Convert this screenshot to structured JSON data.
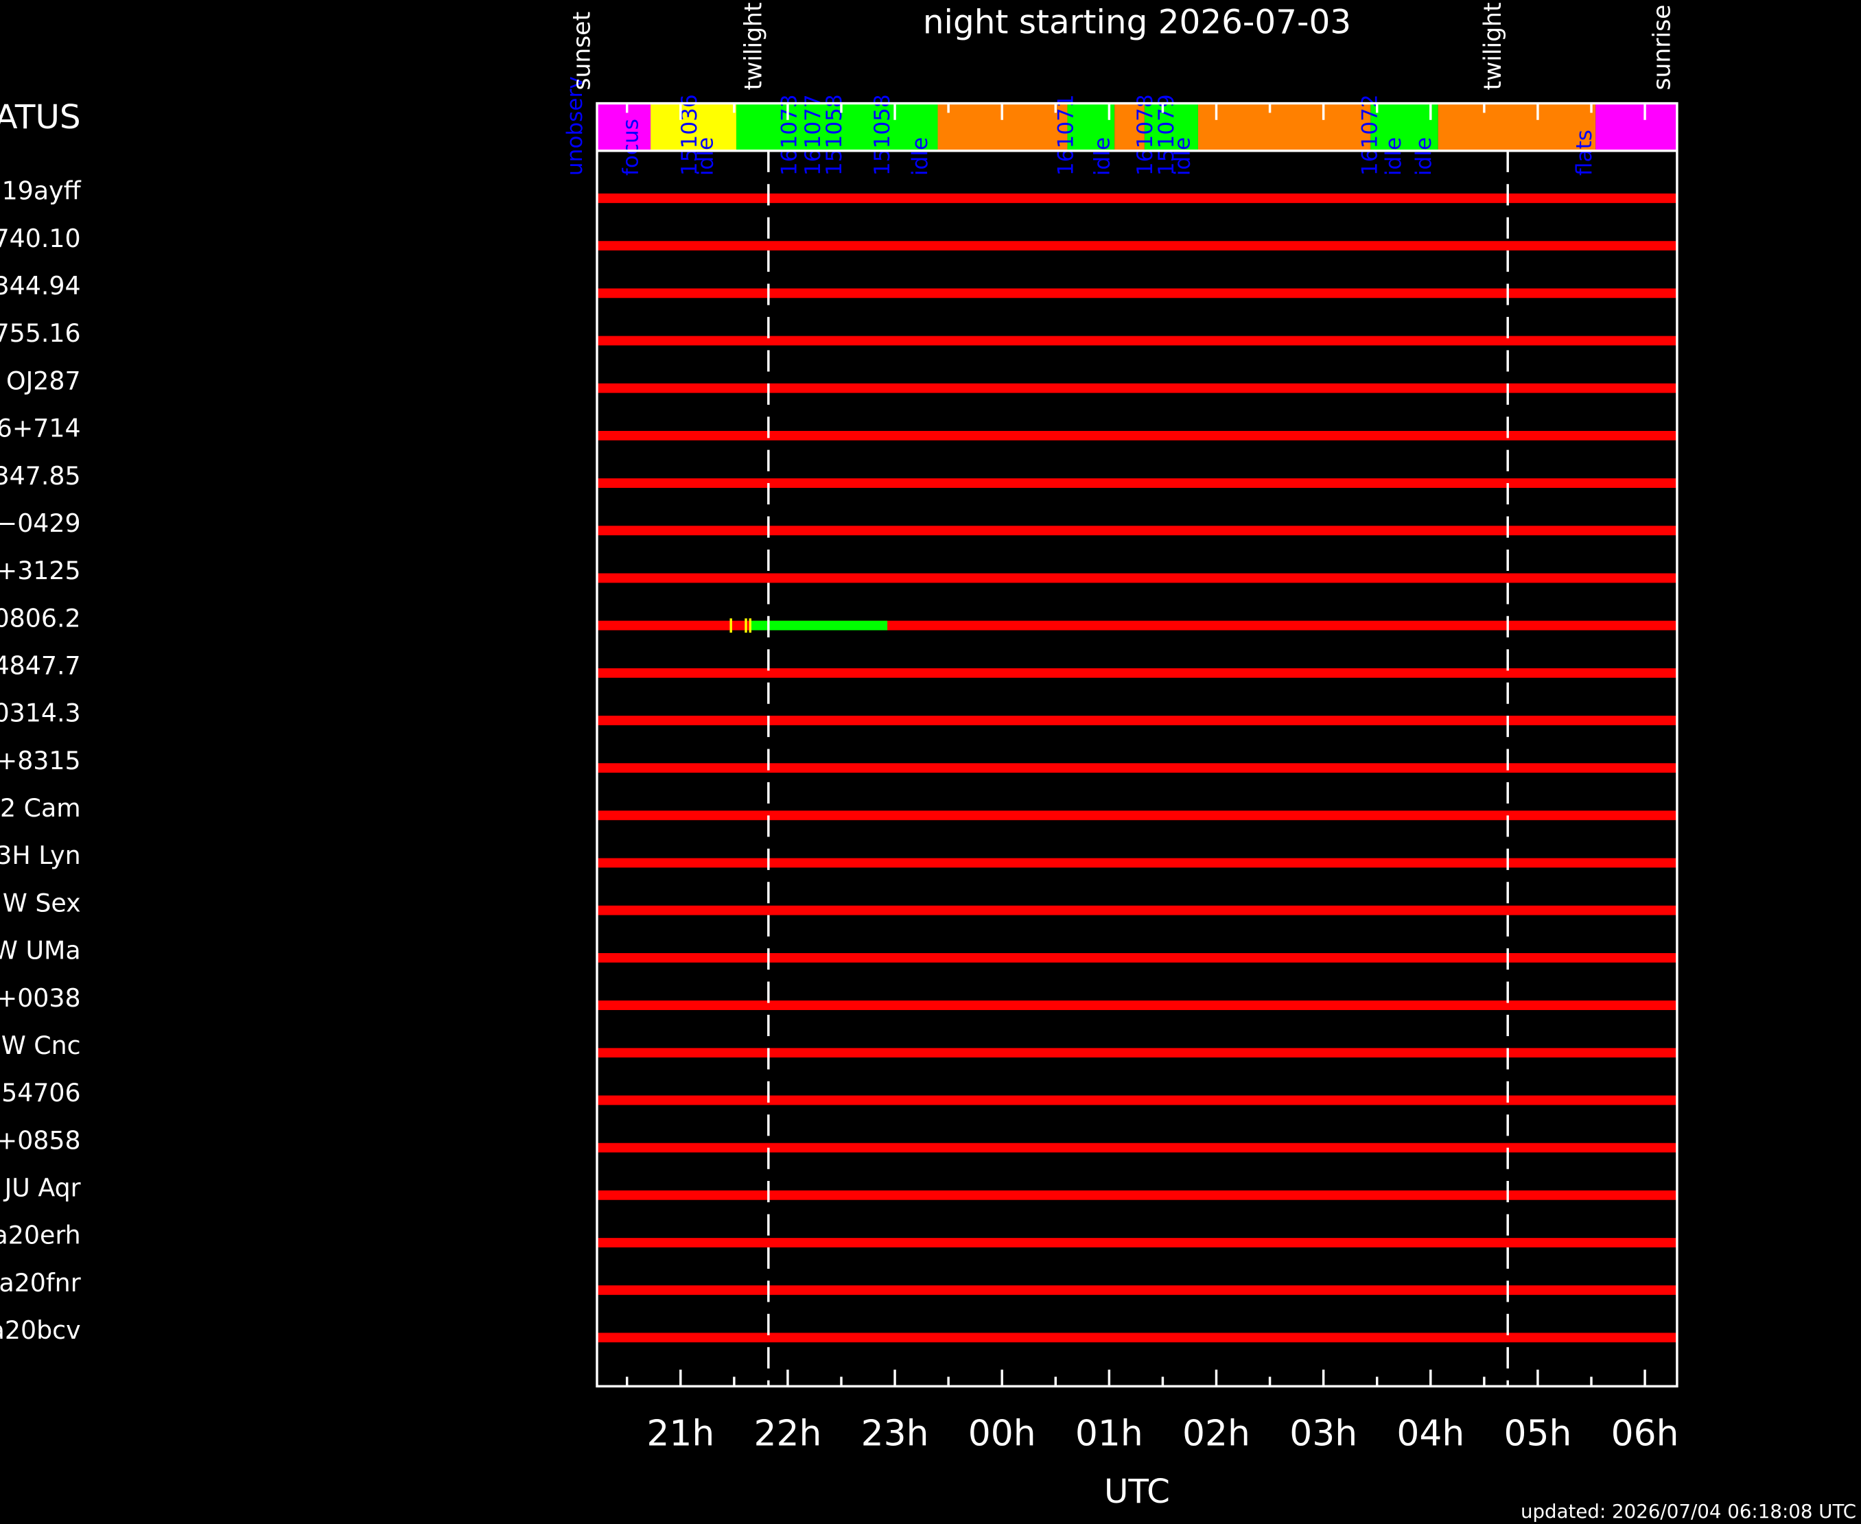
{
  "chart_data": {
    "type": "timeline",
    "title": "night starting 2026-07-03",
    "xlabel": "UTC",
    "header": "ATUS",
    "footer": "updated: 2026/07/04 06:18:08 UTC",
    "xlim": [
      20.22,
      30.3
    ],
    "xticks": [
      {
        "value": 21,
        "label": "21h"
      },
      {
        "value": 22,
        "label": "22h"
      },
      {
        "value": 23,
        "label": "23h"
      },
      {
        "value": 24,
        "label": "00h"
      },
      {
        "value": 25,
        "label": "01h"
      },
      {
        "value": 26,
        "label": "02h"
      },
      {
        "value": 27,
        "label": "03h"
      },
      {
        "value": 28,
        "label": "04h"
      },
      {
        "value": 29,
        "label": "05h"
      },
      {
        "value": 30,
        "label": "06h"
      }
    ],
    "xminor": [
      20.5,
      21.5,
      22.5,
      23.5,
      24.5,
      25.5,
      26.5,
      27.5,
      28.5,
      29.5
    ],
    "events": [
      {
        "name": "sunset",
        "x": 20.22,
        "dashed": false
      },
      {
        "name": "twilight",
        "x": 21.82,
        "dashed": true
      },
      {
        "name": "twilight",
        "x": 28.72,
        "dashed": true
      },
      {
        "name": "sunrise",
        "x": 30.3,
        "dashed": false
      }
    ],
    "status_blocks": [
      {
        "start": 20.22,
        "end": 20.72,
        "color": "#ff00ff"
      },
      {
        "start": 20.72,
        "end": 21.52,
        "color": "#ffff00"
      },
      {
        "start": 21.52,
        "end": 23.4,
        "color": "#00ff00"
      },
      {
        "start": 23.4,
        "end": 24.61,
        "color": "#ff8000"
      },
      {
        "start": 24.61,
        "end": 25.05,
        "color": "#00ff00"
      },
      {
        "start": 25.05,
        "end": 25.33,
        "color": "#ff8000"
      },
      {
        "start": 25.33,
        "end": 25.83,
        "color": "#00ff00"
      },
      {
        "start": 25.83,
        "end": 27.44,
        "color": "#ff8000"
      },
      {
        "start": 27.44,
        "end": 28.07,
        "color": "#00ff00"
      },
      {
        "start": 28.07,
        "end": 29.54,
        "color": "#ff8000"
      },
      {
        "start": 29.54,
        "end": 30.3,
        "color": "#ff00ff"
      }
    ],
    "status_labels": [
      {
        "text": "unobserv",
        "x": 20.08
      },
      {
        "text": "focus",
        "x": 20.6
      },
      {
        "text": "idle",
        "x": 21.3
      },
      {
        "text": "151036",
        "x": 21.15
      },
      {
        "text": "161073",
        "x": 22.08
      },
      {
        "text": "161077",
        "x": 22.3
      },
      {
        "text": "151058",
        "x": 22.5
      },
      {
        "text": "151058",
        "x": 22.95
      },
      {
        "text": "idle",
        "x": 23.3
      },
      {
        "text": "161071",
        "x": 24.66
      },
      {
        "text": "idle",
        "x": 25.0
      },
      {
        "text": "161078",
        "x": 25.4
      },
      {
        "text": "151079",
        "x": 25.6
      },
      {
        "text": "idle",
        "x": 25.75
      },
      {
        "text": "161072",
        "x": 27.5
      },
      {
        "text": "idle",
        "x": 27.72
      },
      {
        "text": "idle",
        "x": 28.0
      },
      {
        "text": "flats",
        "x": 29.5
      }
    ],
    "status_label_color": "#0000ff",
    "bar_color": "#ff0000",
    "rows": [
      "19ayff",
      "740.10",
      "344.94",
      "755.16",
      "OJ287",
      "6+714",
      "347.85",
      "−0429",
      "+3125",
      "0806.2",
      "4847.7",
      "0314.3",
      "+8315",
      "2 Cam",
      "3H Lyn",
      "W Sex",
      "W UMa",
      "+0038",
      "W Cnc",
      "54706",
      "+0858",
      "JU Aqr",
      "a20erh",
      "a20fnr",
      "a20bcv"
    ],
    "highlights": [
      {
        "row": 9,
        "start": 21.65,
        "end": 22.93,
        "color": "#00ff00"
      }
    ],
    "markers": [
      {
        "row": 9,
        "x": 21.47,
        "color": "#ffff00"
      },
      {
        "row": 9,
        "x": 21.61,
        "color": "#ffff00"
      },
      {
        "row": 9,
        "x": 21.65,
        "color": "#ffff00"
      }
    ]
  }
}
